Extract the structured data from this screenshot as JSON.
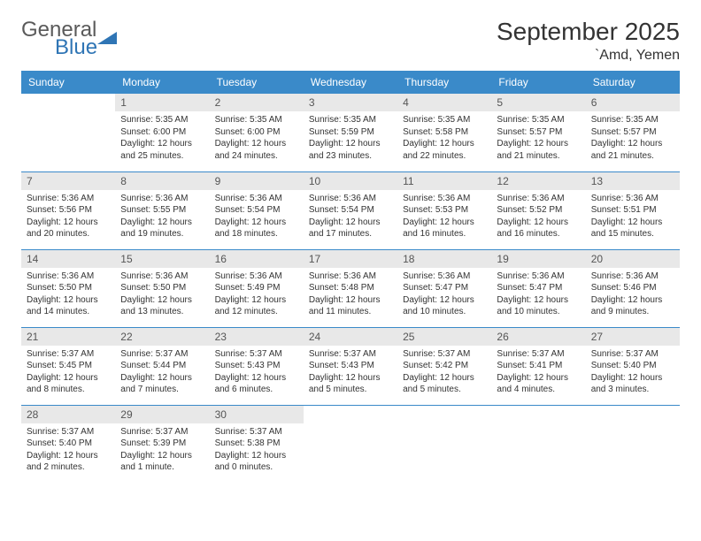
{
  "brand": {
    "word1": "General",
    "word2": "Blue",
    "text_color_gray": "#5a5a5a",
    "text_color_blue": "#2f75b5",
    "triangle_color": "#2f75b5"
  },
  "title": "September 2025",
  "location": "`Amd, Yemen",
  "colors": {
    "header_bg": "#3a8ac9",
    "header_text": "#ffffff",
    "daynum_bg": "#e8e8e8",
    "daynum_text": "#555555",
    "body_text": "#333333",
    "row_border": "#3a8ac9",
    "page_bg": "#ffffff"
  },
  "weekdays": [
    "Sunday",
    "Monday",
    "Tuesday",
    "Wednesday",
    "Thursday",
    "Friday",
    "Saturday"
  ],
  "weeks": [
    [
      null,
      {
        "d": "1",
        "sr": "Sunrise: 5:35 AM",
        "ss": "Sunset: 6:00 PM",
        "dl1": "Daylight: 12 hours",
        "dl2": "and 25 minutes."
      },
      {
        "d": "2",
        "sr": "Sunrise: 5:35 AM",
        "ss": "Sunset: 6:00 PM",
        "dl1": "Daylight: 12 hours",
        "dl2": "and 24 minutes."
      },
      {
        "d": "3",
        "sr": "Sunrise: 5:35 AM",
        "ss": "Sunset: 5:59 PM",
        "dl1": "Daylight: 12 hours",
        "dl2": "and 23 minutes."
      },
      {
        "d": "4",
        "sr": "Sunrise: 5:35 AM",
        "ss": "Sunset: 5:58 PM",
        "dl1": "Daylight: 12 hours",
        "dl2": "and 22 minutes."
      },
      {
        "d": "5",
        "sr": "Sunrise: 5:35 AM",
        "ss": "Sunset: 5:57 PM",
        "dl1": "Daylight: 12 hours",
        "dl2": "and 21 minutes."
      },
      {
        "d": "6",
        "sr": "Sunrise: 5:35 AM",
        "ss": "Sunset: 5:57 PM",
        "dl1": "Daylight: 12 hours",
        "dl2": "and 21 minutes."
      }
    ],
    [
      {
        "d": "7",
        "sr": "Sunrise: 5:36 AM",
        "ss": "Sunset: 5:56 PM",
        "dl1": "Daylight: 12 hours",
        "dl2": "and 20 minutes."
      },
      {
        "d": "8",
        "sr": "Sunrise: 5:36 AM",
        "ss": "Sunset: 5:55 PM",
        "dl1": "Daylight: 12 hours",
        "dl2": "and 19 minutes."
      },
      {
        "d": "9",
        "sr": "Sunrise: 5:36 AM",
        "ss": "Sunset: 5:54 PM",
        "dl1": "Daylight: 12 hours",
        "dl2": "and 18 minutes."
      },
      {
        "d": "10",
        "sr": "Sunrise: 5:36 AM",
        "ss": "Sunset: 5:54 PM",
        "dl1": "Daylight: 12 hours",
        "dl2": "and 17 minutes."
      },
      {
        "d": "11",
        "sr": "Sunrise: 5:36 AM",
        "ss": "Sunset: 5:53 PM",
        "dl1": "Daylight: 12 hours",
        "dl2": "and 16 minutes."
      },
      {
        "d": "12",
        "sr": "Sunrise: 5:36 AM",
        "ss": "Sunset: 5:52 PM",
        "dl1": "Daylight: 12 hours",
        "dl2": "and 16 minutes."
      },
      {
        "d": "13",
        "sr": "Sunrise: 5:36 AM",
        "ss": "Sunset: 5:51 PM",
        "dl1": "Daylight: 12 hours",
        "dl2": "and 15 minutes."
      }
    ],
    [
      {
        "d": "14",
        "sr": "Sunrise: 5:36 AM",
        "ss": "Sunset: 5:50 PM",
        "dl1": "Daylight: 12 hours",
        "dl2": "and 14 minutes."
      },
      {
        "d": "15",
        "sr": "Sunrise: 5:36 AM",
        "ss": "Sunset: 5:50 PM",
        "dl1": "Daylight: 12 hours",
        "dl2": "and 13 minutes."
      },
      {
        "d": "16",
        "sr": "Sunrise: 5:36 AM",
        "ss": "Sunset: 5:49 PM",
        "dl1": "Daylight: 12 hours",
        "dl2": "and 12 minutes."
      },
      {
        "d": "17",
        "sr": "Sunrise: 5:36 AM",
        "ss": "Sunset: 5:48 PM",
        "dl1": "Daylight: 12 hours",
        "dl2": "and 11 minutes."
      },
      {
        "d": "18",
        "sr": "Sunrise: 5:36 AM",
        "ss": "Sunset: 5:47 PM",
        "dl1": "Daylight: 12 hours",
        "dl2": "and 10 minutes."
      },
      {
        "d": "19",
        "sr": "Sunrise: 5:36 AM",
        "ss": "Sunset: 5:47 PM",
        "dl1": "Daylight: 12 hours",
        "dl2": "and 10 minutes."
      },
      {
        "d": "20",
        "sr": "Sunrise: 5:36 AM",
        "ss": "Sunset: 5:46 PM",
        "dl1": "Daylight: 12 hours",
        "dl2": "and 9 minutes."
      }
    ],
    [
      {
        "d": "21",
        "sr": "Sunrise: 5:37 AM",
        "ss": "Sunset: 5:45 PM",
        "dl1": "Daylight: 12 hours",
        "dl2": "and 8 minutes."
      },
      {
        "d": "22",
        "sr": "Sunrise: 5:37 AM",
        "ss": "Sunset: 5:44 PM",
        "dl1": "Daylight: 12 hours",
        "dl2": "and 7 minutes."
      },
      {
        "d": "23",
        "sr": "Sunrise: 5:37 AM",
        "ss": "Sunset: 5:43 PM",
        "dl1": "Daylight: 12 hours",
        "dl2": "and 6 minutes."
      },
      {
        "d": "24",
        "sr": "Sunrise: 5:37 AM",
        "ss": "Sunset: 5:43 PM",
        "dl1": "Daylight: 12 hours",
        "dl2": "and 5 minutes."
      },
      {
        "d": "25",
        "sr": "Sunrise: 5:37 AM",
        "ss": "Sunset: 5:42 PM",
        "dl1": "Daylight: 12 hours",
        "dl2": "and 5 minutes."
      },
      {
        "d": "26",
        "sr": "Sunrise: 5:37 AM",
        "ss": "Sunset: 5:41 PM",
        "dl1": "Daylight: 12 hours",
        "dl2": "and 4 minutes."
      },
      {
        "d": "27",
        "sr": "Sunrise: 5:37 AM",
        "ss": "Sunset: 5:40 PM",
        "dl1": "Daylight: 12 hours",
        "dl2": "and 3 minutes."
      }
    ],
    [
      {
        "d": "28",
        "sr": "Sunrise: 5:37 AM",
        "ss": "Sunset: 5:40 PM",
        "dl1": "Daylight: 12 hours",
        "dl2": "and 2 minutes."
      },
      {
        "d": "29",
        "sr": "Sunrise: 5:37 AM",
        "ss": "Sunset: 5:39 PM",
        "dl1": "Daylight: 12 hours",
        "dl2": "and 1 minute."
      },
      {
        "d": "30",
        "sr": "Sunrise: 5:37 AM",
        "ss": "Sunset: 5:38 PM",
        "dl1": "Daylight: 12 hours",
        "dl2": "and 0 minutes."
      },
      null,
      null,
      null,
      null
    ]
  ]
}
